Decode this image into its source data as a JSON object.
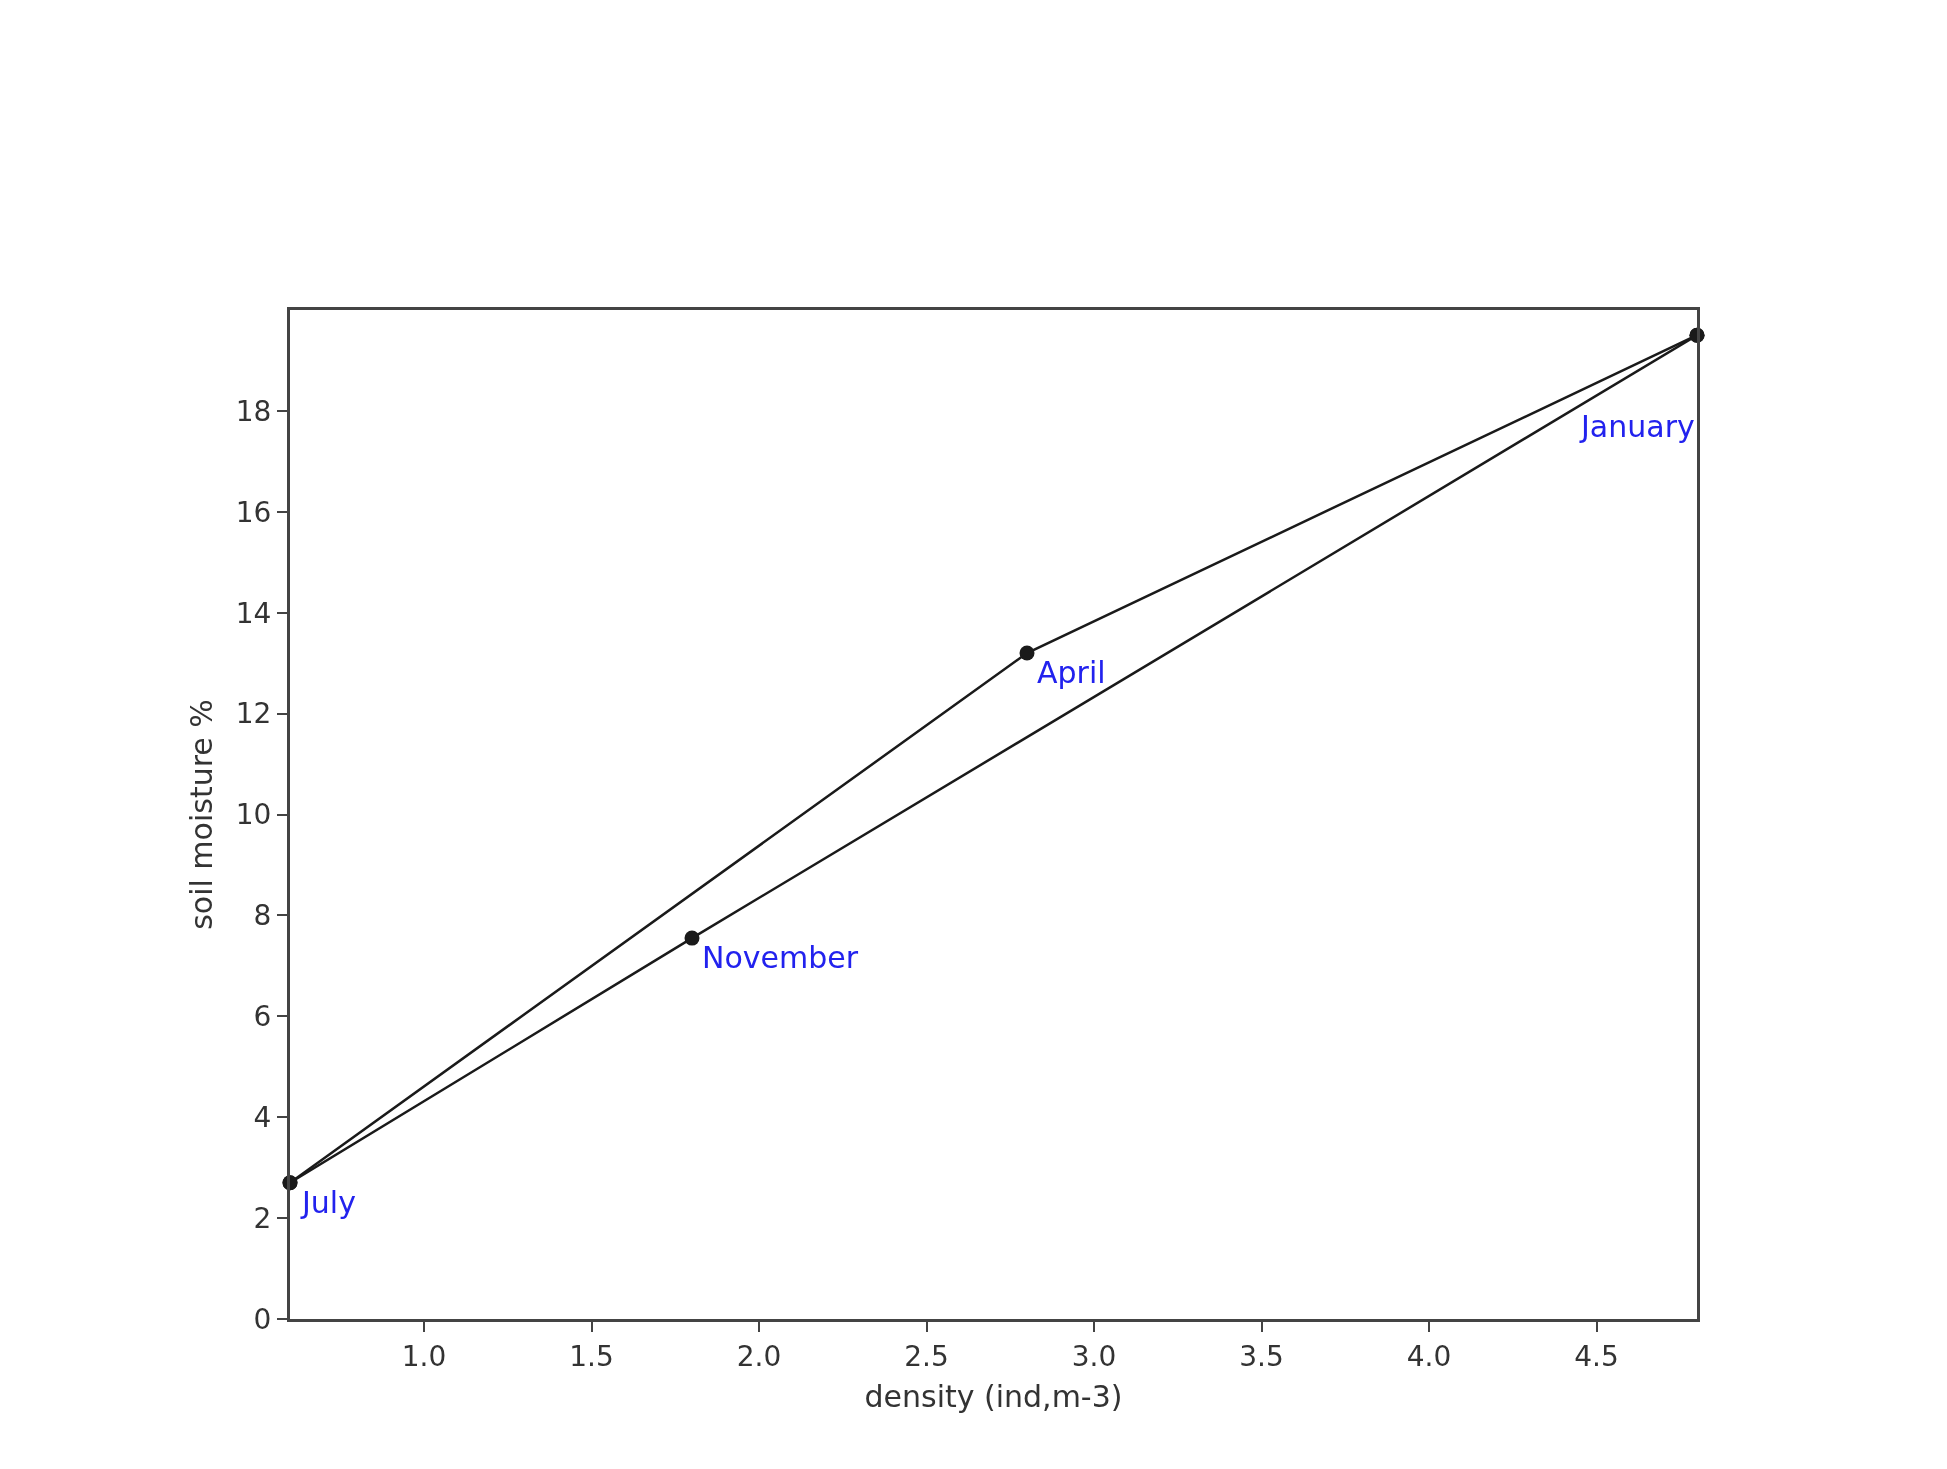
{
  "chart_data": {
    "type": "line",
    "xlabel": "density (ind,m-3)",
    "ylabel": "soil moisture %",
    "series": [
      {
        "color": "#1a1a1a",
        "x": [
          0.6,
          2.8,
          4.8
        ],
        "values": [
          2.7,
          13.2,
          19.5
        ]
      },
      {
        "color": "#1a1a1a",
        "x": [
          0.6,
          1.8,
          4.8
        ],
        "values": [
          2.7,
          7.55,
          19.5
        ]
      }
    ],
    "marker": "circle",
    "line_style": "solid",
    "legend": false,
    "xlim": [
      0.6,
      4.8
    ],
    "xticks": [
      {
        "value": 1,
        "label": "1.0"
      },
      {
        "value": 1.5,
        "label": "1.5"
      },
      {
        "value": 2,
        "label": "2.0"
      },
      {
        "value": 2.5,
        "label": "2.5"
      },
      {
        "value": 3,
        "label": "3.0"
      },
      {
        "value": 3.5,
        "label": "3.5"
      },
      {
        "value": 4,
        "label": "4.0"
      },
      {
        "value": 4.5,
        "label": "4.5"
      }
    ],
    "ylim": [
      0,
      20
    ],
    "yticks": [
      0,
      2,
      4,
      6,
      8,
      10,
      12,
      14,
      16,
      18
    ],
    "annotations": [
      {
        "text": "July",
        "x": 0.6,
        "y": 2.7
      },
      {
        "text": "April",
        "x": 2.8,
        "y": 13.2
      },
      {
        "text": "January",
        "x": 4.8,
        "y": 19.5
      },
      {
        "text": "November",
        "x": 1.8,
        "y": 7.55
      }
    ]
  }
}
